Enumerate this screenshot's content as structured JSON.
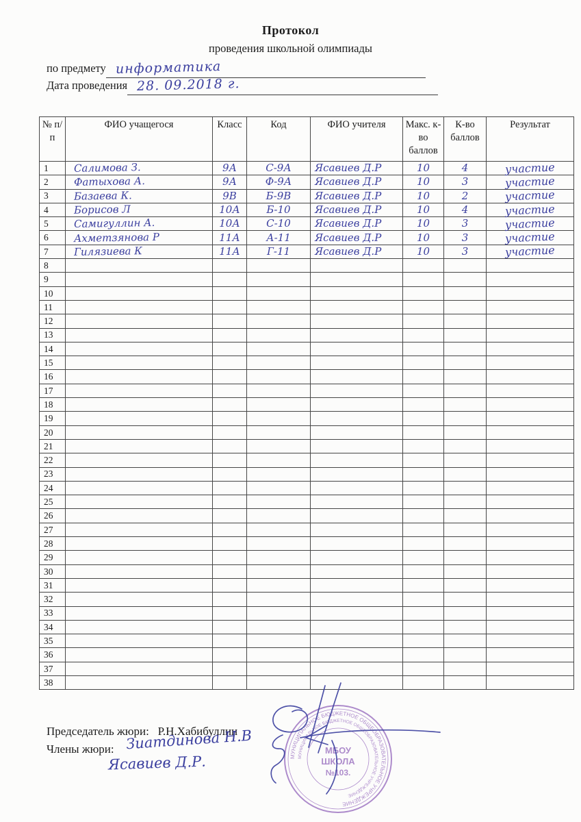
{
  "header": {
    "title": "Протокол",
    "subtitle": "проведения школьной олимпиады"
  },
  "fields": {
    "subject_label": "по предмету",
    "subject_value": "информатика",
    "date_label": "Дата проведения",
    "date_value": "28. 09.2018 г."
  },
  "table": {
    "headers": [
      "№ п/п",
      "ФИО учащегося",
      "Класс",
      "Код",
      "ФИО учителя",
      "Макс. к-во баллов",
      "К-во баллов",
      "Результат"
    ],
    "row_keys": [
      "num",
      "name",
      "class",
      "code",
      "teacher",
      "max",
      "score",
      "result"
    ],
    "hw_keys": [
      "name",
      "class",
      "code",
      "teacher",
      "max",
      "score",
      "result"
    ],
    "rows": [
      {
        "num": "1",
        "name": "Салимова З.",
        "class": "9А",
        "code": "С-9А",
        "teacher": "Ясавиев Д.Р",
        "max": "10",
        "score": "4",
        "result": "участие"
      },
      {
        "num": "2",
        "name": "Фатыхова А.",
        "class": "9А",
        "code": "Ф-9А",
        "teacher": "Ясавиев Д.Р",
        "max": "10",
        "score": "3",
        "result": "участие"
      },
      {
        "num": "3",
        "name": "Базаева К.",
        "class": "9В",
        "code": "Б-9В",
        "teacher": "Ясавиев Д.Р",
        "max": "10",
        "score": "2",
        "result": "участие"
      },
      {
        "num": "4",
        "name": "Борисов Л",
        "class": "10А",
        "code": "Б-10",
        "teacher": "Ясавиев Д.Р",
        "max": "10",
        "score": "4",
        "result": "участие"
      },
      {
        "num": "5",
        "name": "Самигуллин А.",
        "class": "10А",
        "code": "С-10",
        "teacher": "Ясавиев Д.Р",
        "max": "10",
        "score": "3",
        "result": "участие"
      },
      {
        "num": "6",
        "name": "Ахметзянова Р",
        "class": "11А",
        "code": "А-11",
        "teacher": "Ясавиев Д.Р",
        "max": "10",
        "score": "3",
        "result": "участие"
      },
      {
        "num": "7",
        "name": "Гилязиева К",
        "class": "11А",
        "code": "Г-11",
        "teacher": "Ясавиев Д.Р",
        "max": "10",
        "score": "3",
        "result": "участие"
      },
      {
        "num": "8",
        "name": "",
        "class": "",
        "code": "",
        "teacher": "",
        "max": "",
        "score": "",
        "result": ""
      },
      {
        "num": "9",
        "name": "",
        "class": "",
        "code": "",
        "teacher": "",
        "max": "",
        "score": "",
        "result": ""
      },
      {
        "num": "10",
        "name": "",
        "class": "",
        "code": "",
        "teacher": "",
        "max": "",
        "score": "",
        "result": ""
      },
      {
        "num": "11",
        "name": "",
        "class": "",
        "code": "",
        "teacher": "",
        "max": "",
        "score": "",
        "result": ""
      },
      {
        "num": "12",
        "name": "",
        "class": "",
        "code": "",
        "teacher": "",
        "max": "",
        "score": "",
        "result": ""
      },
      {
        "num": "13",
        "name": "",
        "class": "",
        "code": "",
        "teacher": "",
        "max": "",
        "score": "",
        "result": ""
      },
      {
        "num": "14",
        "name": "",
        "class": "",
        "code": "",
        "teacher": "",
        "max": "",
        "score": "",
        "result": ""
      },
      {
        "num": "15",
        "name": "",
        "class": "",
        "code": "",
        "teacher": "",
        "max": "",
        "score": "",
        "result": ""
      },
      {
        "num": "16",
        "name": "",
        "class": "",
        "code": "",
        "teacher": "",
        "max": "",
        "score": "",
        "result": ""
      },
      {
        "num": "17",
        "name": "",
        "class": "",
        "code": "",
        "teacher": "",
        "max": "",
        "score": "",
        "result": ""
      },
      {
        "num": "18",
        "name": "",
        "class": "",
        "code": "",
        "teacher": "",
        "max": "",
        "score": "",
        "result": ""
      },
      {
        "num": "19",
        "name": "",
        "class": "",
        "code": "",
        "teacher": "",
        "max": "",
        "score": "",
        "result": ""
      },
      {
        "num": "20",
        "name": "",
        "class": "",
        "code": "",
        "teacher": "",
        "max": "",
        "score": "",
        "result": ""
      },
      {
        "num": "21",
        "name": "",
        "class": "",
        "code": "",
        "teacher": "",
        "max": "",
        "score": "",
        "result": ""
      },
      {
        "num": "22",
        "name": "",
        "class": "",
        "code": "",
        "teacher": "",
        "max": "",
        "score": "",
        "result": ""
      },
      {
        "num": "23",
        "name": "",
        "class": "",
        "code": "",
        "teacher": "",
        "max": "",
        "score": "",
        "result": ""
      },
      {
        "num": "24",
        "name": "",
        "class": "",
        "code": "",
        "teacher": "",
        "max": "",
        "score": "",
        "result": ""
      },
      {
        "num": "25",
        "name": "",
        "class": "",
        "code": "",
        "teacher": "",
        "max": "",
        "score": "",
        "result": ""
      },
      {
        "num": "26",
        "name": "",
        "class": "",
        "code": "",
        "teacher": "",
        "max": "",
        "score": "",
        "result": ""
      },
      {
        "num": "27",
        "name": "",
        "class": "",
        "code": "",
        "teacher": "",
        "max": "",
        "score": "",
        "result": ""
      },
      {
        "num": "28",
        "name": "",
        "class": "",
        "code": "",
        "teacher": "",
        "max": "",
        "score": "",
        "result": ""
      },
      {
        "num": "29",
        "name": "",
        "class": "",
        "code": "",
        "teacher": "",
        "max": "",
        "score": "",
        "result": ""
      },
      {
        "num": "30",
        "name": "",
        "class": "",
        "code": "",
        "teacher": "",
        "max": "",
        "score": "",
        "result": ""
      },
      {
        "num": "31",
        "name": "",
        "class": "",
        "code": "",
        "teacher": "",
        "max": "",
        "score": "",
        "result": ""
      },
      {
        "num": "32",
        "name": "",
        "class": "",
        "code": "",
        "teacher": "",
        "max": "",
        "score": "",
        "result": ""
      },
      {
        "num": "33",
        "name": "",
        "class": "",
        "code": "",
        "teacher": "",
        "max": "",
        "score": "",
        "result": ""
      },
      {
        "num": "34",
        "name": "",
        "class": "",
        "code": "",
        "teacher": "",
        "max": "",
        "score": "",
        "result": ""
      },
      {
        "num": "35",
        "name": "",
        "class": "",
        "code": "",
        "teacher": "",
        "max": "",
        "score": "",
        "result": ""
      },
      {
        "num": "36",
        "name": "",
        "class": "",
        "code": "",
        "teacher": "",
        "max": "",
        "score": "",
        "result": ""
      },
      {
        "num": "37",
        "name": "",
        "class": "",
        "code": "",
        "teacher": "",
        "max": "",
        "score": "",
        "result": ""
      },
      {
        "num": "38",
        "name": "",
        "class": "",
        "code": "",
        "teacher": "",
        "max": "",
        "score": "",
        "result": ""
      }
    ]
  },
  "footer": {
    "chairman_label": "Председатель жюри:",
    "chairman_name": "Р.Н.Хабибуллин",
    "members_label": "Члены жюри:",
    "member1": "Зиатдинова Н.В",
    "member2": "Ясавиев Д.Р."
  },
  "stamp": {
    "line1": "МБОУ",
    "line2": "ШКОЛА",
    "line3": "№103.",
    "ring_text": "МУНИЦИПАЛЬНОЕ БЮДЖЕТНОЕ ОБЩЕОБРАЗОВАТЕЛЬНОЕ УЧРЕЖДЕНИЕ "
  },
  "colors": {
    "ink": "#3b3f9f",
    "stamp": "#9a6fc0",
    "paper": "#fcfcfb",
    "table_border": "#454545"
  }
}
